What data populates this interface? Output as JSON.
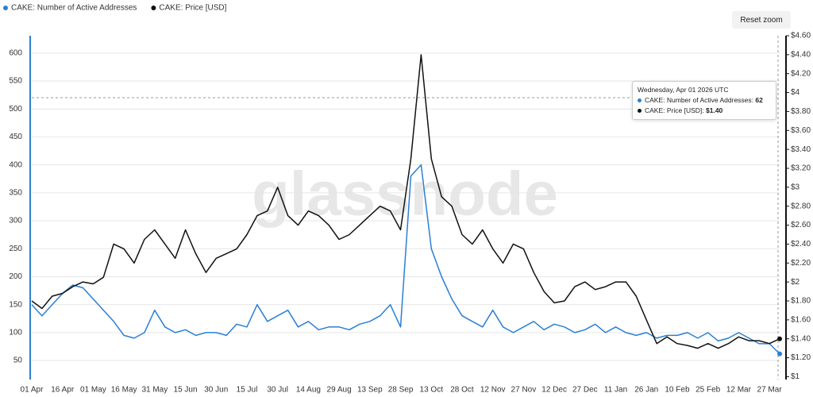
{
  "chart_data": {
    "type": "line",
    "legend": "top-left",
    "grid": true,
    "reset_zoom": "Reset zoom",
    "watermark": "glassnode",
    "tooltip": {
      "date": "Wednesday, Apr 01 2026 UTC",
      "items": [
        {
          "label": "CAKE: Number of Active Addresses:",
          "value": "62"
        },
        {
          "label": "CAKE: Price [USD]:",
          "value": "$1.40"
        }
      ]
    },
    "categories": [
      "01 Apr",
      null,
      null,
      "16 Apr",
      null,
      null,
      "01 May",
      null,
      null,
      "16 May",
      null,
      null,
      "31 May",
      null,
      null,
      "15 Jun",
      null,
      null,
      "30 Jun",
      null,
      null,
      "15 Jul",
      null,
      null,
      "30 Jul",
      null,
      null,
      "14 Aug",
      null,
      null,
      "29 Aug",
      null,
      null,
      "13 Sep",
      null,
      null,
      "28 Sep",
      null,
      null,
      "13 Oct",
      null,
      null,
      "28 Oct",
      null,
      null,
      "12 Nov",
      null,
      null,
      "27 Nov",
      null,
      null,
      "12 Dec",
      null,
      null,
      "27 Dec",
      null,
      null,
      "11 Jan",
      null,
      null,
      "26 Jan",
      null,
      null,
      "10 Feb",
      null,
      null,
      "25 Feb",
      null,
      null,
      "12 Mar",
      null,
      null,
      "27 Mar",
      null
    ],
    "ylim": [
      16,
      631
    ],
    "yticks": [
      50,
      100,
      150,
      200,
      250,
      300,
      350,
      400,
      450,
      500,
      550,
      600
    ],
    "y2lim": [
      0.97,
      4.6
    ],
    "y2ticks": [
      {
        "value": 1,
        "label": "$1"
      },
      {
        "value": 1.2,
        "label": "$1.20"
      },
      {
        "value": 1.4,
        "label": "$1.40"
      },
      {
        "value": 1.6,
        "label": "$1.60"
      },
      {
        "value": 1.8,
        "label": "$1.80"
      },
      {
        "value": 2,
        "label": "$2"
      },
      {
        "value": 2.2,
        "label": "$2.20"
      },
      {
        "value": 2.4,
        "label": "$2.40"
      },
      {
        "value": 2.6,
        "label": "$2.60"
      },
      {
        "value": 2.8,
        "label": "$2.80"
      },
      {
        "value": 3,
        "label": "$3"
      },
      {
        "value": 3.2,
        "label": "$3.20"
      },
      {
        "value": 3.4,
        "label": "$3.40"
      },
      {
        "value": 3.6,
        "label": "$3.60"
      },
      {
        "value": 3.8,
        "label": "$3.80"
      },
      {
        "value": 4,
        "label": "$4"
      },
      {
        "value": 4.2,
        "label": "$4.20"
      },
      {
        "value": 4.4,
        "label": "$4.40"
      },
      {
        "value": 4.6,
        "label": "$4.60"
      }
    ],
    "series": [
      {
        "name": "CAKE: Number of Active Addresses",
        "color": "#2a7fd4",
        "values": [
          150,
          130,
          150,
          170,
          185,
          180,
          160,
          140,
          120,
          95,
          90,
          100,
          140,
          110,
          100,
          105,
          95,
          100,
          100,
          95,
          115,
          110,
          150,
          120,
          130,
          140,
          110,
          120,
          105,
          110,
          110,
          105,
          115,
          120,
          130,
          150,
          110,
          380,
          400,
          250,
          200,
          160,
          130,
          120,
          110,
          140,
          110,
          100,
          110,
          120,
          105,
          115,
          110,
          100,
          105,
          115,
          100,
          110,
          100,
          95,
          100,
          90,
          95,
          95,
          100,
          90,
          100,
          85,
          90,
          100,
          90,
          80,
          80,
          62
        ]
      },
      {
        "name": "CAKE: Price [USD]",
        "color": "#111111",
        "axis": "y2",
        "values": [
          1.8,
          1.72,
          1.85,
          1.88,
          1.95,
          2.0,
          1.98,
          2.05,
          2.4,
          2.35,
          2.2,
          2.45,
          2.55,
          2.4,
          2.25,
          2.55,
          2.3,
          2.1,
          2.25,
          2.3,
          2.35,
          2.5,
          2.7,
          2.75,
          3.0,
          2.7,
          2.6,
          2.75,
          2.7,
          2.6,
          2.45,
          2.5,
          2.6,
          2.7,
          2.8,
          2.75,
          2.55,
          3.3,
          4.4,
          3.3,
          2.9,
          2.8,
          2.5,
          2.4,
          2.55,
          2.35,
          2.2,
          2.4,
          2.35,
          2.1,
          1.9,
          1.78,
          1.8,
          1.95,
          2.0,
          1.92,
          1.95,
          2.0,
          2.0,
          1.85,
          1.6,
          1.35,
          1.42,
          1.35,
          1.33,
          1.3,
          1.35,
          1.3,
          1.35,
          1.42,
          1.38,
          1.38,
          1.35,
          1.4
        ]
      }
    ]
  }
}
